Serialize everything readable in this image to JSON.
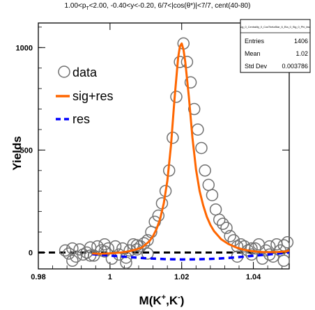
{
  "chart_data": {
    "type": "scatter",
    "title": {
      "p_prefix": "1.00<p",
      "p_sub": "T",
      "rest": "<2.00, -0.40<y<-0.20, 6/7<|cos(θ*)|<7/7, cent(40-80)"
    },
    "xlabel": {
      "main": "M(K",
      "sup1": "+",
      "mid": ",K",
      "sup2": "-",
      "end": ")"
    },
    "ylabel": "Yields",
    "xlim": [
      0.98,
      1.05
    ],
    "ylim": [
      -80,
      1120
    ],
    "xticks": [
      {
        "value": 0.98,
        "label": "0.98"
      },
      {
        "value": 1.0,
        "label": "1"
      },
      {
        "value": 1.02,
        "label": "1.02"
      },
      {
        "value": 1.04,
        "label": "1.04"
      }
    ],
    "yticks": [
      {
        "value": 0,
        "label": "0"
      },
      {
        "value": 500,
        "label": "500"
      },
      {
        "value": 1000,
        "label": "1000"
      }
    ],
    "legend": [
      {
        "label": "data",
        "kind": "marker"
      },
      {
        "label": "sig+res",
        "kind": "solid"
      },
      {
        "label": "res",
        "kind": "dashed"
      }
    ],
    "stats_box": {
      "name": "sig_0_Centrality_0_CosThetaStar_6_Eta_0_Sig_0_Phi_fast",
      "rows": [
        {
          "label": "Entries",
          "value": "1406"
        },
        {
          "label": "Mean",
          "value": "1.02"
        },
        {
          "label": "Std Dev",
          "value": "0.003786"
        }
      ]
    },
    "colors": {
      "data": "#707070",
      "sig_res": "#ff6600",
      "res": "#0000ff",
      "zero": "#000000"
    },
    "series": [
      {
        "name": "data",
        "x": [
          0.9875,
          0.9885,
          0.9895,
          0.9905,
          0.9915,
          0.9925,
          0.9935,
          0.9945,
          0.9955,
          0.9965,
          0.9975,
          0.9985,
          0.9995,
          1.0005,
          1.0015,
          1.0025,
          1.0035,
          1.0045,
          1.0055,
          1.0065,
          1.0075,
          1.0085,
          1.0095,
          1.0105,
          1.0115,
          1.0125,
          1.0135,
          1.0145,
          1.0155,
          1.0165,
          1.0175,
          1.0185,
          1.0195,
          1.0205,
          1.0215,
          1.0225,
          1.0235,
          1.0245,
          1.0255,
          1.0265,
          1.0275,
          1.0285,
          1.0295,
          1.0305,
          1.0315,
          1.0325,
          1.0335,
          1.0345,
          1.0355,
          1.0365,
          1.0375,
          1.0385,
          1.0395,
          1.0405,
          1.0415,
          1.0425,
          1.0435,
          1.0445,
          1.0455,
          1.0465,
          1.0475,
          1.0485,
          1.0495,
          0.9895,
          0.9945,
          0.9985,
          1.0045,
          1.0075,
          1.0105,
          1.0355,
          1.0395,
          1.0445,
          1.0485
        ],
        "y": [
          10,
          -5,
          20,
          -20,
          15,
          -10,
          0,
          25,
          -15,
          30,
          10,
          40,
          20,
          -30,
          30,
          -10,
          20,
          -50,
          10,
          40,
          35,
          30,
          45,
          60,
          100,
          150,
          180,
          240,
          300,
          400,
          560,
          760,
          930,
          1020,
          930,
          830,
          700,
          600,
          510,
          400,
          330,
          280,
          210,
          160,
          140,
          120,
          80,
          60,
          30,
          40,
          30,
          10,
          -10,
          20,
          40,
          -30,
          10,
          30,
          -20,
          40,
          10,
          -40,
          50,
          -40,
          -15,
          5,
          -25,
          15,
          -5,
          -20,
          20,
          -10,
          35
        ],
        "marker": "open-circle"
      },
      {
        "name": "sig+res",
        "x": [
          0.995,
          0.997,
          0.999,
          1.001,
          1.003,
          1.005,
          1.007,
          1.009,
          1.011,
          1.012,
          1.013,
          1.014,
          1.015,
          1.016,
          1.017,
          1.018,
          1.019,
          1.0195,
          1.02,
          1.0205,
          1.021,
          1.022,
          1.023,
          1.024,
          1.025,
          1.026,
          1.027,
          1.028,
          1.029,
          1.031,
          1.033,
          1.035,
          1.037,
          1.039,
          1.041,
          1.043,
          1.045,
          1.047,
          1.049,
          1.05
        ],
        "y": [
          -5,
          -6,
          -5,
          -3,
          0,
          5,
          13,
          25,
          55,
          80,
          115,
          165,
          240,
          350,
          520,
          750,
          950,
          1005,
          1020,
          990,
          930,
          760,
          560,
          405,
          300,
          230,
          175,
          135,
          105,
          65,
          42,
          26,
          15,
          8,
          4,
          2,
          2,
          3,
          5,
          10
        ]
      },
      {
        "name": "res",
        "x": [
          0.995,
          1.0,
          1.005,
          1.01,
          1.015,
          1.02,
          1.025,
          1.03,
          1.035,
          1.04,
          1.045,
          1.05
        ],
        "y": [
          -8,
          -15,
          -22,
          -28,
          -32,
          -34,
          -33,
          -30,
          -24,
          -16,
          -8,
          0
        ]
      }
    ]
  }
}
